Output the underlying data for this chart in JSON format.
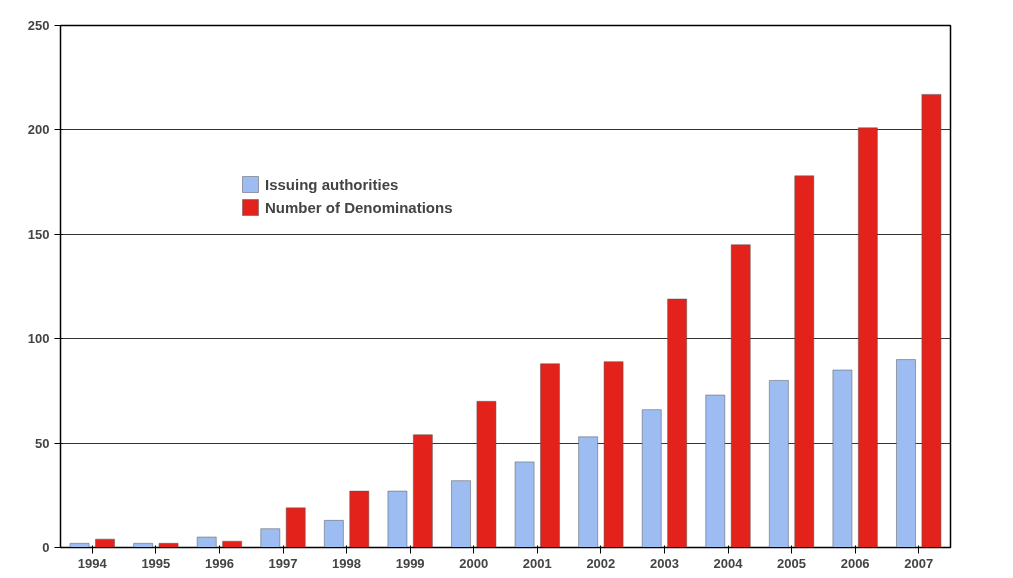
{
  "chart_data": {
    "type": "bar",
    "categories": [
      "1994",
      "1995",
      "1996",
      "1997",
      "1998",
      "1999",
      "2000",
      "2001",
      "2002",
      "2003",
      "2004",
      "2005",
      "2006",
      "2007"
    ],
    "series": [
      {
        "name": "Issuing authorities",
        "color": "#9dbdf2",
        "values": [
          2,
          2,
          5,
          9,
          13,
          27,
          32,
          41,
          53,
          66,
          73,
          80,
          85,
          90
        ]
      },
      {
        "name": "Number of Denominations",
        "color": "#e3231b",
        "values": [
          4,
          2,
          3,
          19,
          27,
          54,
          70,
          88,
          89,
          119,
          145,
          178,
          201,
          217
        ]
      }
    ],
    "ylim": [
      0,
      250
    ],
    "yticks": [
      0,
      50,
      100,
      150,
      200,
      250
    ],
    "grid": "y",
    "legend": "top left"
  }
}
